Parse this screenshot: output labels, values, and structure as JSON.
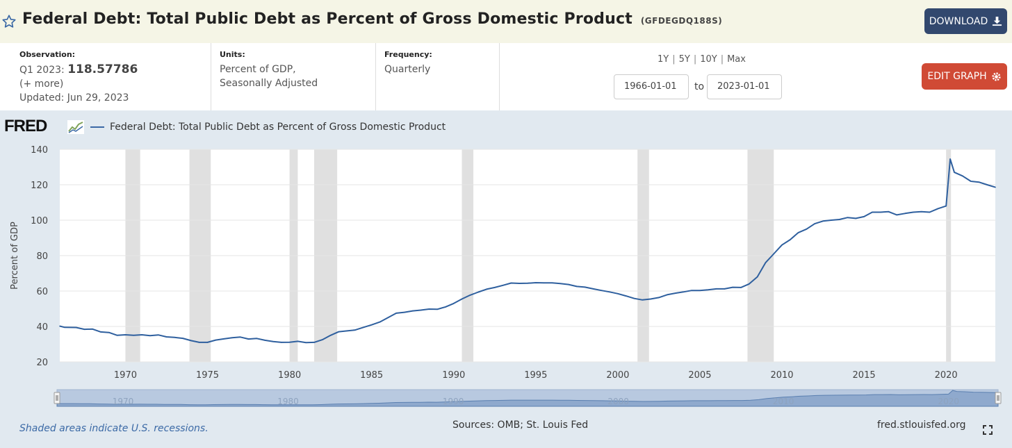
{
  "header": {
    "title": "Federal Debt: Total Public Debt as Percent of Gross Domestic Product",
    "series_id": "(GFDEGDQ188S)",
    "download_label": "DOWNLOAD"
  },
  "meta": {
    "observation_label": "Observation:",
    "observation_period": "Q1 2023:",
    "observation_value": "118.57786",
    "more": "(+ more)",
    "updated": "Updated: Jun 29, 2023",
    "units_label": "Units:",
    "units_line1": "Percent of GDP,",
    "units_line2": "Seasonally Adjusted",
    "frequency_label": "Frequency:",
    "frequency_value": "Quarterly"
  },
  "controls": {
    "ranges": [
      "1Y",
      "5Y",
      "10Y",
      "Max"
    ],
    "start_date": "1966-01-01",
    "to_label": "to",
    "end_date": "2023-01-01",
    "edit_label": "EDIT GRAPH"
  },
  "brand": {
    "logo": "FRED"
  },
  "footer": {
    "recession_note": "Shaded areas indicate U.S. recessions.",
    "sources": "Sources: OMB; St. Louis Fed",
    "site": "fred.stlouisfed.org"
  },
  "colors": {
    "line": "#2e5f9e",
    "recession": "#e0e0e0",
    "download": "#32486e",
    "edit": "#d04a35"
  },
  "chart_data": {
    "type": "line",
    "title": "Federal Debt: Total Public Debt as Percent of Gross Domestic Product",
    "legend": "Federal Debt: Total Public Debt as Percent of Gross Domestic Product",
    "ylabel": "Percent of GDP",
    "xlabel": "",
    "xlim": [
      1966.0,
      2023.0
    ],
    "ylim": [
      20,
      140
    ],
    "yticks": [
      20,
      40,
      60,
      80,
      100,
      120,
      140
    ],
    "xticks": [
      1970,
      1975,
      1980,
      1985,
      1990,
      1995,
      2000,
      2005,
      2010,
      2015,
      2020
    ],
    "navigator_labels": [
      1970,
      1980,
      1990,
      2000,
      2010,
      2020
    ],
    "recessions": [
      [
        1970.0,
        1970.9
      ],
      [
        1973.9,
        1975.2
      ],
      [
        1980.0,
        1980.5
      ],
      [
        1981.5,
        1982.9
      ],
      [
        1990.5,
        1991.2
      ],
      [
        2001.2,
        2001.9
      ],
      [
        2007.9,
        2009.5
      ],
      [
        2020.0,
        2020.3
      ]
    ],
    "series": [
      {
        "name": "GFDEGDQ188S",
        "x": [
          1966.0,
          1966.3,
          1967.0,
          1967.5,
          1968.0,
          1968.5,
          1969.0,
          1969.5,
          1970.0,
          1970.5,
          1971.0,
          1971.5,
          1972.0,
          1972.5,
          1973.0,
          1973.5,
          1974.0,
          1974.5,
          1975.0,
          1975.5,
          1976.0,
          1976.5,
          1977.0,
          1977.5,
          1978.0,
          1978.5,
          1979.0,
          1979.5,
          1980.0,
          1980.5,
          1981.0,
          1981.5,
          1982.0,
          1982.5,
          1983.0,
          1983.5,
          1984.0,
          1984.5,
          1985.0,
          1985.5,
          1986.0,
          1986.5,
          1987.0,
          1987.5,
          1988.0,
          1988.5,
          1989.0,
          1989.5,
          1990.0,
          1990.5,
          1991.0,
          1991.5,
          1992.0,
          1992.5,
          1993.0,
          1993.5,
          1994.0,
          1994.5,
          1995.0,
          1995.5,
          1996.0,
          1996.5,
          1997.0,
          1997.5,
          1998.0,
          1998.5,
          1999.0,
          1999.5,
          2000.0,
          2000.5,
          2001.0,
          2001.5,
          2002.0,
          2002.5,
          2003.0,
          2003.5,
          2004.0,
          2004.5,
          2005.0,
          2005.5,
          2006.0,
          2006.5,
          2007.0,
          2007.5,
          2008.0,
          2008.5,
          2009.0,
          2009.5,
          2010.0,
          2010.5,
          2011.0,
          2011.5,
          2012.0,
          2012.5,
          2013.0,
          2013.5,
          2014.0,
          2014.5,
          2015.0,
          2015.5,
          2016.0,
          2016.5,
          2017.0,
          2017.5,
          2018.0,
          2018.5,
          2019.0,
          2019.5,
          2020.0,
          2020.25,
          2020.5,
          2021.0,
          2021.5,
          2022.0,
          2022.5,
          2023.0
        ],
        "values": [
          40.2,
          39.5,
          39.4,
          38.4,
          38.5,
          36.9,
          36.6,
          35.0,
          35.3,
          35.0,
          35.3,
          34.8,
          35.2,
          34.1,
          33.8,
          33.3,
          32.0,
          31.0,
          31.0,
          32.3,
          33.0,
          33.6,
          34.0,
          32.9,
          33.2,
          32.2,
          31.5,
          31.0,
          31.1,
          31.6,
          30.9,
          31.0,
          32.5,
          35.0,
          37.0,
          37.5,
          38.0,
          39.5,
          40.9,
          42.5,
          45.0,
          47.5,
          48.0,
          48.8,
          49.2,
          49.8,
          49.7,
          51.0,
          53.0,
          55.5,
          57.7,
          59.4,
          61.0,
          62.0,
          63.2,
          64.5,
          64.3,
          64.4,
          64.7,
          64.6,
          64.6,
          64.2,
          63.7,
          62.6,
          62.2,
          61.2,
          60.3,
          59.5,
          58.5,
          57.2,
          55.8,
          55.0,
          55.5,
          56.3,
          57.9,
          58.8,
          59.5,
          60.3,
          60.3,
          60.7,
          61.2,
          61.2,
          62.1,
          62.0,
          64.0,
          68.0,
          76.0,
          81.0,
          86.0,
          89.0,
          93.0,
          95.0,
          98.0,
          99.5,
          100.0,
          100.4,
          101.5,
          101.0,
          102.0,
          104.5,
          104.5,
          104.8,
          103.0,
          103.8,
          104.5,
          104.8,
          104.5,
          106.5,
          108.0,
          134.5,
          127.0,
          125.0,
          122.0,
          121.5,
          120.0,
          118.6
        ]
      }
    ]
  }
}
